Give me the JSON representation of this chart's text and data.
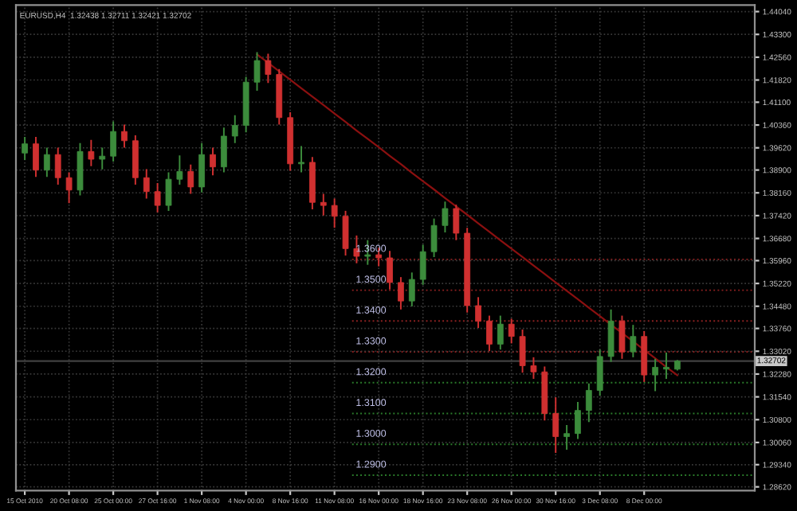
{
  "chart_data": {
    "type": "candlestick",
    "title": "EURUSD,H4  1.32438 1.32711 1.32421 1.32702",
    "categories": [
      "15 Oct 2010",
      null,
      null,
      null,
      "20 Oct 08:00",
      null,
      null,
      null,
      "25 Oct 00:00",
      null,
      null,
      null,
      "27 Oct 16:00",
      null,
      null,
      null,
      "1 Nov 08:00",
      null,
      null,
      null,
      "4 Nov 00:00",
      null,
      null,
      null,
      "8 Nov 16:00",
      null,
      null,
      null,
      "11 Nov 08:00",
      null,
      null,
      null,
      "16 Nov 00:00",
      null,
      null,
      null,
      "18 Nov 16:00",
      null,
      null,
      null,
      "23 Nov 08:00",
      null,
      null,
      null,
      "26 Nov 00:00",
      null,
      null,
      null,
      "30 Nov 16:00",
      null,
      null,
      null,
      "3 Dec 08:00",
      null,
      null,
      null,
      "8 Dec 00:00",
      null,
      null,
      null
    ],
    "ohlc": [
      [
        1.3945,
        1.3995,
        1.3925,
        1.3975
      ],
      [
        1.3975,
        1.3995,
        1.387,
        1.389
      ],
      [
        1.389,
        1.396,
        1.387,
        1.394
      ],
      [
        1.394,
        1.396,
        1.3845,
        1.3865
      ],
      [
        1.3865,
        1.388,
        1.3785,
        1.3825
      ],
      [
        1.3825,
        1.3975,
        1.381,
        1.395
      ],
      [
        1.395,
        1.3985,
        1.3905,
        1.3925
      ],
      [
        1.3925,
        1.396,
        1.3895,
        1.3935
      ],
      [
        1.3935,
        1.4045,
        1.392,
        1.4015
      ],
      [
        1.4015,
        1.4035,
        1.3965,
        1.3985
      ],
      [
        1.3985,
        1.4,
        1.3845,
        1.3865
      ],
      [
        1.3865,
        1.389,
        1.38,
        1.382
      ],
      [
        1.382,
        1.3845,
        1.3755,
        1.3775
      ],
      [
        1.3775,
        1.388,
        1.376,
        1.386
      ],
      [
        1.386,
        1.3935,
        1.3845,
        1.3885
      ],
      [
        1.3885,
        1.3905,
        1.3815,
        1.3835
      ],
      [
        1.3835,
        1.3975,
        1.382,
        1.394
      ],
      [
        1.394,
        1.396,
        1.3875,
        1.39
      ],
      [
        1.39,
        1.4025,
        1.3885,
        1.4
      ],
      [
        1.4,
        1.4065,
        1.398,
        1.4035
      ],
      [
        1.4035,
        1.419,
        1.4015,
        1.4175
      ],
      [
        1.4175,
        1.427,
        1.415,
        1.4245
      ],
      [
        1.4245,
        1.4265,
        1.4175,
        1.42
      ],
      [
        1.42,
        1.4215,
        1.404,
        1.406
      ],
      [
        1.406,
        1.4075,
        1.389,
        1.391
      ],
      [
        1.391,
        1.3965,
        1.3885,
        1.3915
      ],
      [
        1.3915,
        1.393,
        1.3765,
        1.3785
      ],
      [
        1.3785,
        1.381,
        1.3745,
        1.3775
      ],
      [
        1.3775,
        1.3795,
        1.3705,
        1.374
      ],
      [
        1.374,
        1.3755,
        1.3615,
        1.3635
      ],
      [
        1.3635,
        1.3675,
        1.359,
        1.361
      ],
      [
        1.361,
        1.366,
        1.3585,
        1.3615
      ],
      [
        1.3615,
        1.3635,
        1.358,
        1.3605
      ],
      [
        1.3605,
        1.3625,
        1.3505,
        1.3525
      ],
      [
        1.3525,
        1.354,
        1.344,
        1.3465
      ],
      [
        1.3465,
        1.3555,
        1.345,
        1.3535
      ],
      [
        1.3535,
        1.3645,
        1.352,
        1.3625
      ],
      [
        1.3625,
        1.373,
        1.361,
        1.371
      ],
      [
        1.371,
        1.3785,
        1.369,
        1.3765
      ],
      [
        1.3765,
        1.3775,
        1.3665,
        1.3685
      ],
      [
        1.3685,
        1.37,
        1.343,
        1.345
      ],
      [
        1.345,
        1.3475,
        1.338,
        1.34
      ],
      [
        1.34,
        1.3415,
        1.3305,
        1.3325
      ],
      [
        1.3325,
        1.3415,
        1.331,
        1.339
      ],
      [
        1.339,
        1.3405,
        1.333,
        1.335
      ],
      [
        1.335,
        1.337,
        1.3235,
        1.3255
      ],
      [
        1.3255,
        1.328,
        1.3215,
        1.3235
      ],
      [
        1.3235,
        1.325,
        1.308,
        1.31
      ],
      [
        1.31,
        1.315,
        1.2975,
        1.3025
      ],
      [
        1.3025,
        1.306,
        1.2985,
        1.3035
      ],
      [
        1.3035,
        1.3135,
        1.302,
        1.311
      ],
      [
        1.311,
        1.3195,
        1.3075,
        1.3175
      ],
      [
        1.3175,
        1.3305,
        1.316,
        1.3285
      ],
      [
        1.3285,
        1.3435,
        1.327,
        1.34
      ],
      [
        1.34,
        1.3415,
        1.328,
        1.33
      ],
      [
        1.33,
        1.3385,
        1.3285,
        1.335
      ],
      [
        1.335,
        1.3365,
        1.3205,
        1.3225
      ],
      [
        1.3225,
        1.3275,
        1.3175,
        1.325
      ],
      [
        1.325,
        1.3295,
        1.3215,
        1.3244
      ],
      [
        1.32438,
        1.32711,
        1.32421,
        1.32702
      ]
    ],
    "colors": [
      "#3c8c3c",
      "#d03030",
      "#3c8c3c",
      "#d03030",
      "#d03030",
      "#3c8c3c",
      "#d03030",
      "#3c8c3c",
      "#3c8c3c",
      "#d03030",
      "#d03030",
      "#d03030",
      "#d03030",
      "#3c8c3c",
      "#3c8c3c",
      "#d03030",
      "#3c8c3c",
      "#d03030",
      "#3c8c3c",
      "#3c8c3c",
      "#3c8c3c",
      "#3c8c3c",
      "#d03030",
      "#d03030",
      "#d03030",
      "#3c8c3c",
      "#d03030",
      "#d03030",
      "#d03030",
      "#d03030",
      "#d03030",
      "#3c8c3c",
      "#d03030",
      "#d03030",
      "#d03030",
      "#3c8c3c",
      "#3c8c3c",
      "#3c8c3c",
      "#3c8c3c",
      "#d03030",
      "#d03030",
      "#d03030",
      "#d03030",
      "#3c8c3c",
      "#d03030",
      "#d03030",
      "#d03030",
      "#d03030",
      "#d03030",
      "#3c8c3c",
      "#3c8c3c",
      "#3c8c3c",
      "#3c8c3c",
      "#3c8c3c",
      "#d03030",
      "#3c8c3c",
      "#d03030",
      "#3c8c3c",
      "#3c8c3c",
      "#3c8c3c"
    ],
    "series": [
      {
        "type": "line",
        "color": "#8b1010",
        "values": [
          null,
          null,
          null,
          null,
          null,
          null,
          null,
          null,
          null,
          null,
          null,
          null,
          null,
          null,
          null,
          null,
          null,
          null,
          null,
          null,
          null,
          1.4265,
          1.4238,
          1.421,
          1.4183,
          1.4155,
          1.4128,
          1.4101,
          1.4073,
          1.4046,
          1.4018,
          1.3991,
          1.3964,
          1.3936,
          1.3909,
          1.3881,
          1.3854,
          1.3827,
          1.3799,
          1.3772,
          1.3745,
          1.3717,
          1.369,
          1.3662,
          1.3635,
          1.3608,
          1.358,
          1.3553,
          1.3525,
          1.3498,
          1.3471,
          1.3443,
          1.3416,
          1.3388,
          1.3361,
          1.3334,
          1.3306,
          1.3279,
          1.3251,
          1.3224
        ]
      }
    ],
    "ref_lines": [
      {
        "axis": "y",
        "value": 1.36,
        "label": "1.3600",
        "color": "#8b2020",
        "line_style": "dotted"
      },
      {
        "axis": "y",
        "value": 1.35,
        "label": "1.3500",
        "color": "#8b2020",
        "line_style": "dotted"
      },
      {
        "axis": "y",
        "value": 1.34,
        "label": "1.3400",
        "color": "#8b2020",
        "line_style": "dotted"
      },
      {
        "axis": "y",
        "value": 1.33,
        "label": "1.3300",
        "color": "#8b2020",
        "line_style": "dotted"
      },
      {
        "axis": "y",
        "value": 1.32,
        "label": "1.3200",
        "color": "#2a7a2a",
        "line_style": "dotted"
      },
      {
        "axis": "y",
        "value": 1.31,
        "label": "1.3100",
        "color": "#2a7a2a",
        "line_style": "dotted"
      },
      {
        "axis": "y",
        "value": 1.3,
        "label": "1.3000",
        "color": "#2a7a2a",
        "line_style": "dotted"
      },
      {
        "axis": "y",
        "value": 1.29,
        "label": "1.2900",
        "color": "#2a7a2a",
        "line_style": "dotted"
      },
      {
        "axis": "y",
        "value": 1.32702,
        "label": "1.32702",
        "color": "#404040",
        "line_style": "solid"
      }
    ],
    "ylim": [
      1.285,
      1.4425
    ],
    "yticks": [
      {
        "value": 1.2862,
        "label": "1.28620"
      },
      {
        "value": 1.2934,
        "label": "1.29340"
      },
      {
        "value": 1.3006,
        "label": "1.30060"
      },
      {
        "value": 1.308,
        "label": "1.30800"
      },
      {
        "value": 1.3154,
        "label": "1.31540"
      },
      {
        "value": 1.3228,
        "label": "1.32280"
      },
      {
        "value": 1.3302,
        "label": "1.33020"
      },
      {
        "value": 1.3376,
        "label": "1.33760"
      },
      {
        "value": 1.3448,
        "label": "1.34480"
      },
      {
        "value": 1.3522,
        "label": "1.35220"
      },
      {
        "value": 1.3596,
        "label": "1.35960"
      },
      {
        "value": 1.3668,
        "label": "1.36680"
      },
      {
        "value": 1.3742,
        "label": "1.37420"
      },
      {
        "value": 1.3816,
        "label": "1.38160"
      },
      {
        "value": 1.389,
        "label": "1.38900"
      },
      {
        "value": 1.3962,
        "label": "1.39620"
      },
      {
        "value": 1.4036,
        "label": "1.40360"
      },
      {
        "value": 1.411,
        "label": "1.41100"
      },
      {
        "value": 1.4182,
        "label": "1.41820"
      },
      {
        "value": 1.4256,
        "label": "1.42560"
      },
      {
        "value": 1.433,
        "label": "1.43300"
      },
      {
        "value": 1.4404,
        "label": "1.44040"
      }
    ],
    "grid": true
  }
}
